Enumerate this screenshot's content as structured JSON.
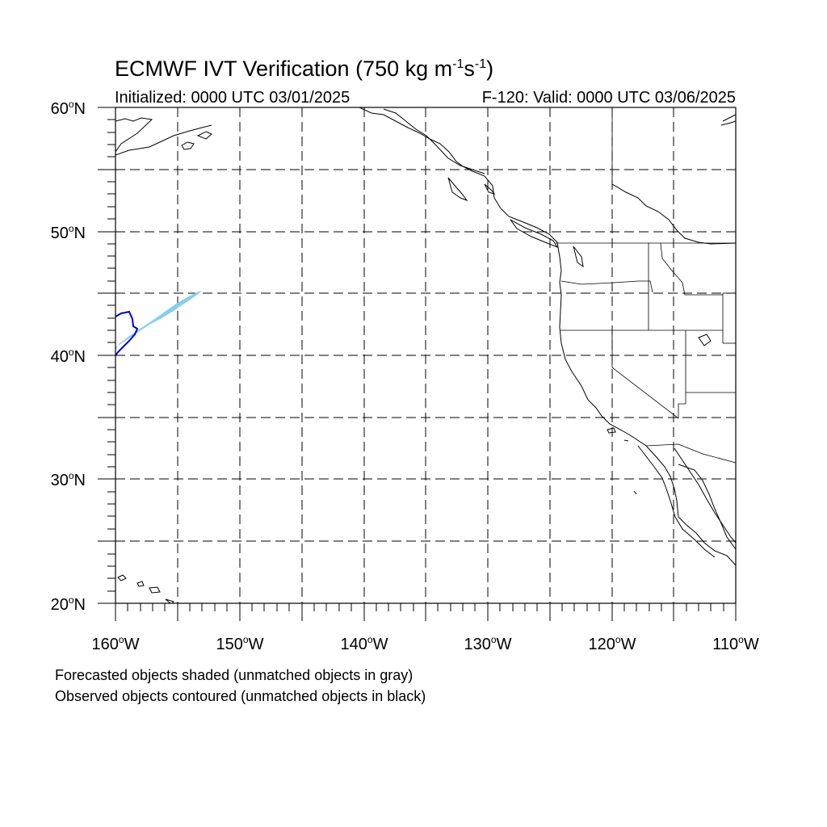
{
  "title": {
    "prefix": "ECMWF IVT Verification (750 kg m",
    "exp1": "-1",
    "mid": "s",
    "exp2": "-1",
    "suffix": ")"
  },
  "subtitle_left": "Initialized: 0000 UTC 03/01/2025",
  "subtitle_right": "F-120: Valid: 0000 UTC 03/06/2025",
  "lat_labels": [
    {
      "value": "60",
      "suffix": "N"
    },
    {
      "value": "50",
      "suffix": "N"
    },
    {
      "value": "40",
      "suffix": "N"
    },
    {
      "value": "30",
      "suffix": "N"
    },
    {
      "value": "20",
      "suffix": "N"
    }
  ],
  "lon_labels": [
    {
      "value": "160",
      "suffix": "W"
    },
    {
      "value": "150",
      "suffix": "W"
    },
    {
      "value": "140",
      "suffix": "W"
    },
    {
      "value": "130",
      "suffix": "W"
    },
    {
      "value": "120",
      "suffix": "W"
    },
    {
      "value": "110",
      "suffix": "W"
    }
  ],
  "degree_symbol": "o",
  "notes": {
    "forecast": "Forecasted objects shaded (unmatched objects in gray)",
    "observed": "Observed objects contoured (unmatched objects in black)"
  },
  "map_extent": {
    "lon_min": -160,
    "lon_max": -110,
    "lat_min": 20,
    "lat_max": 60,
    "grid_step_deg": 5
  },
  "colors": {
    "forecast_fill": "#87ceeb",
    "observed_contour": "#0000cc",
    "coastline": "#000000",
    "grid": "#000000"
  }
}
